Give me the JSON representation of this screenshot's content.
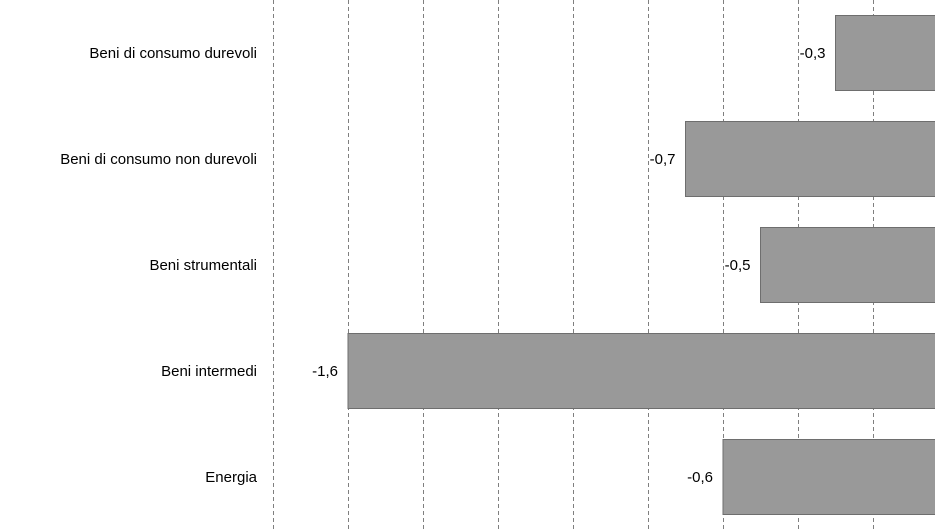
{
  "chart_data": {
    "type": "bar",
    "orientation": "horizontal",
    "categories": [
      "Beni di consumo durevoli",
      "Beni di consumo non durevoli",
      "Beni strumentali",
      "Beni intermedi",
      "Energia"
    ],
    "values": [
      -0.3,
      -0.7,
      -0.5,
      -1.6,
      -0.6
    ],
    "data_labels": [
      "-0,3",
      "-0,7",
      "-0,5",
      "-1,6",
      "-0,6"
    ],
    "xlim": [
      -1.8,
      0
    ],
    "grid": "vertical-dashed",
    "colors": {
      "bar_fill": "#999999",
      "bar_stroke": "#6e6e6e",
      "grid": "#7f7f7f",
      "text": "#000000"
    }
  }
}
